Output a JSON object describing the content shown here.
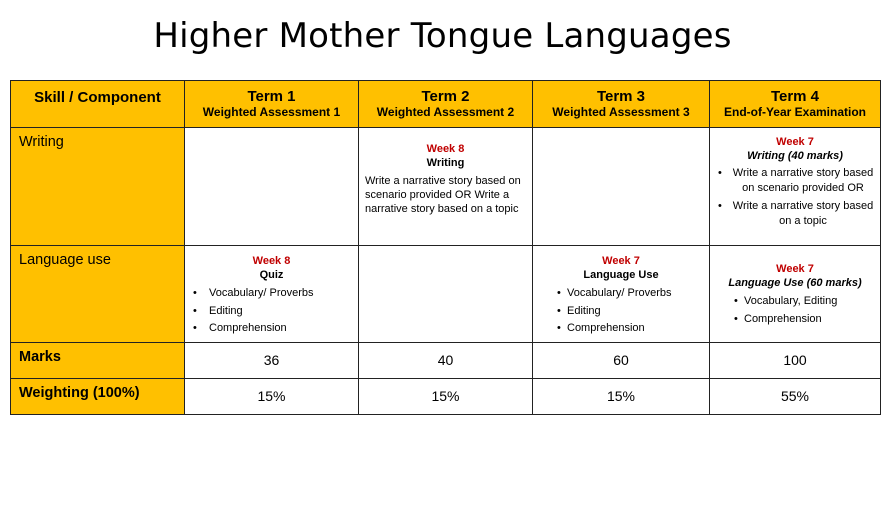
{
  "title": "Higher Mother Tongue Languages",
  "colors": {
    "header_bg": "#ffc000",
    "week_red": "#c00000",
    "border": "#222222"
  },
  "header": {
    "skill": "Skill / Component",
    "terms": [
      {
        "term": "Term 1",
        "sub": "Weighted Assessment 1"
      },
      {
        "term": "Term 2",
        "sub": "Weighted Assessment 2"
      },
      {
        "term": "Term 3",
        "sub": "Weighted Assessment 3"
      },
      {
        "term": "Term 4",
        "sub": "End-of-Year Examination"
      }
    ]
  },
  "writing": {
    "label": "Writing",
    "term2": {
      "week": "Week 8",
      "title": "Writing",
      "description": "Write a narrative story based on scenario provided OR Write a narrative story based on a topic"
    },
    "term4": {
      "week": "Week 7",
      "title": "Writing (40 marks)",
      "bullets": [
        "Write a narrative story based on scenario provided OR",
        "Write a narrative story based on a topic"
      ]
    }
  },
  "language_use": {
    "label": "Language use",
    "term1": {
      "week": "Week 8",
      "title": "Quiz",
      "bullets": [
        "Vocabulary/ Proverbs",
        " Editing",
        "Comprehension"
      ]
    },
    "term3": {
      "week": "Week 7",
      "title": "Language Use",
      "bullets": [
        "Vocabulary/ Proverbs",
        " Editing",
        "Comprehension"
      ]
    },
    "term4": {
      "week": "Week 7",
      "title": "Language Use (60 marks)",
      "bullets": [
        "Vocabulary, Editing",
        "Comprehension"
      ]
    }
  },
  "marks": {
    "label": "Marks",
    "values": [
      "36",
      "40",
      "60",
      "100"
    ]
  },
  "weighting": {
    "label": "Weighting (100%)",
    "values": [
      "15%",
      "15%",
      "15%",
      "55%"
    ]
  },
  "bullet_char": "•"
}
